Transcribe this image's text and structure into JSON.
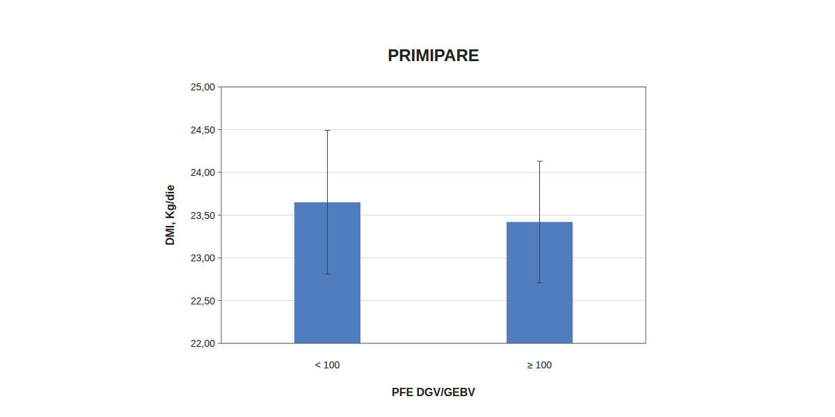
{
  "chart_data": {
    "type": "bar",
    "title": "PRIMIPARE",
    "x_label": "PFE DGV/GEBV",
    "y_label": "DMI, Kg/die",
    "categories": [
      "< 100",
      "≥ 100"
    ],
    "values": [
      23.65,
      23.42
    ],
    "errors": [
      0.84,
      0.71
    ],
    "color": "#4f7dbd",
    "ylim": [
      22,
      25
    ],
    "yticks": [
      {
        "value": 22,
        "label": "22,00"
      },
      {
        "value": 22.5,
        "label": "22,50"
      },
      {
        "value": 23,
        "label": "23,00"
      },
      {
        "value": 23.5,
        "label": "23,50"
      },
      {
        "value": 24,
        "label": "24,00"
      },
      {
        "value": 24.5,
        "label": "24,50"
      },
      {
        "value": 25,
        "label": "25,00"
      }
    ],
    "grid": true
  }
}
